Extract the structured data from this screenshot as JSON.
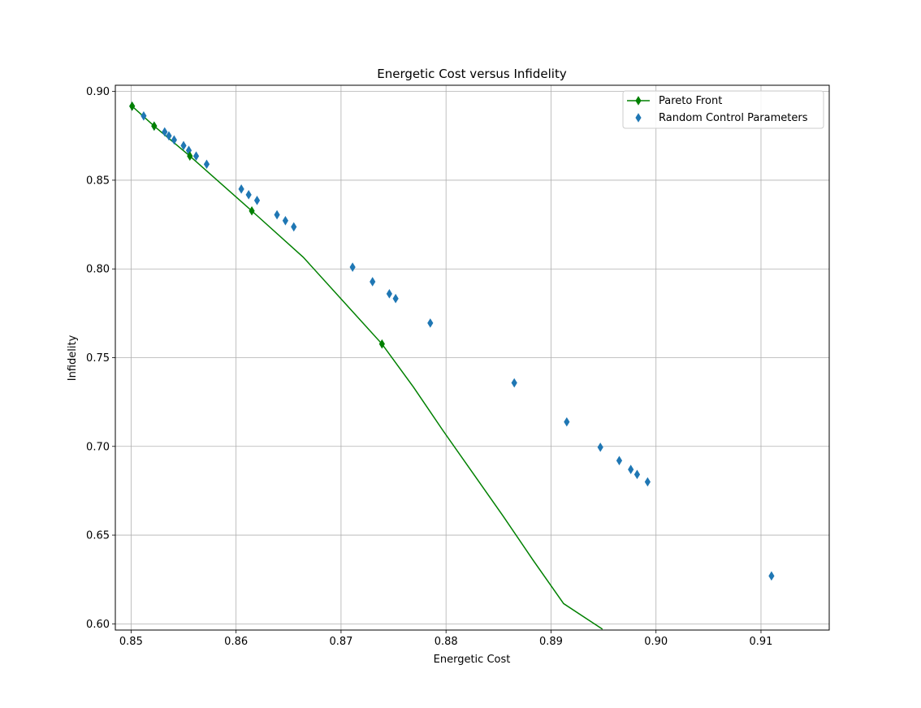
{
  "chart_data": {
    "type": "scatter",
    "title": "Energetic Cost versus Infidelity",
    "xlabel": "Energetic Cost",
    "ylabel": "Infidelity",
    "xlim": [
      0.8485,
      0.9165
    ],
    "ylim": [
      0.5965,
      0.9035
    ],
    "xticks": [
      "0.85",
      "0.86",
      "0.87",
      "0.88",
      "0.89",
      "0.90",
      "0.91"
    ],
    "yticks": [
      "0.60",
      "0.65",
      "0.70",
      "0.75",
      "0.80",
      "0.85",
      "0.90"
    ],
    "grid": true,
    "legend_position": "top-right",
    "series": [
      {
        "name": "Pareto Front",
        "kind": "line",
        "color": "#008000",
        "marker": "diamond",
        "line_x": [
          0.8501,
          0.8522,
          0.8556,
          0.8615,
          0.8664,
          0.8739,
          0.8769,
          0.8797,
          0.8826,
          0.8855,
          0.8883,
          0.8912,
          0.8949
        ],
        "line_y": [
          0.8917,
          0.8805,
          0.8636,
          0.8327,
          0.8066,
          0.7577,
          0.7334,
          0.709,
          0.6846,
          0.6602,
          0.6358,
          0.6114,
          0.597
        ],
        "points_x": [
          0.8501,
          0.8522,
          0.8556,
          0.8615,
          0.8739
        ],
        "points_y": [
          0.8917,
          0.8805,
          0.8636,
          0.8327,
          0.7577
        ]
      },
      {
        "name": "Random Control Parameters",
        "kind": "scatter",
        "color": "#1f77b4",
        "marker": "diamond",
        "x": [
          0.8501,
          0.8512,
          0.8522,
          0.8532,
          0.8536,
          0.8541,
          0.855,
          0.8555,
          0.8562,
          0.8572,
          0.8605,
          0.8612,
          0.862,
          0.8639,
          0.8647,
          0.8655,
          0.8711,
          0.873,
          0.8746,
          0.8752,
          0.8785,
          0.8865,
          0.8915,
          0.8947,
          0.8965,
          0.8976,
          0.8982,
          0.8992,
          0.911
        ],
        "y": [
          0.8917,
          0.8862,
          0.8805,
          0.8772,
          0.875,
          0.8727,
          0.8695,
          0.8668,
          0.8636,
          0.859,
          0.845,
          0.8418,
          0.8386,
          0.8305,
          0.8272,
          0.8237,
          0.801,
          0.7928,
          0.786,
          0.7833,
          0.7695,
          0.7358,
          0.7138,
          0.6995,
          0.692,
          0.687,
          0.6842,
          0.68,
          0.627
        ]
      }
    ]
  }
}
